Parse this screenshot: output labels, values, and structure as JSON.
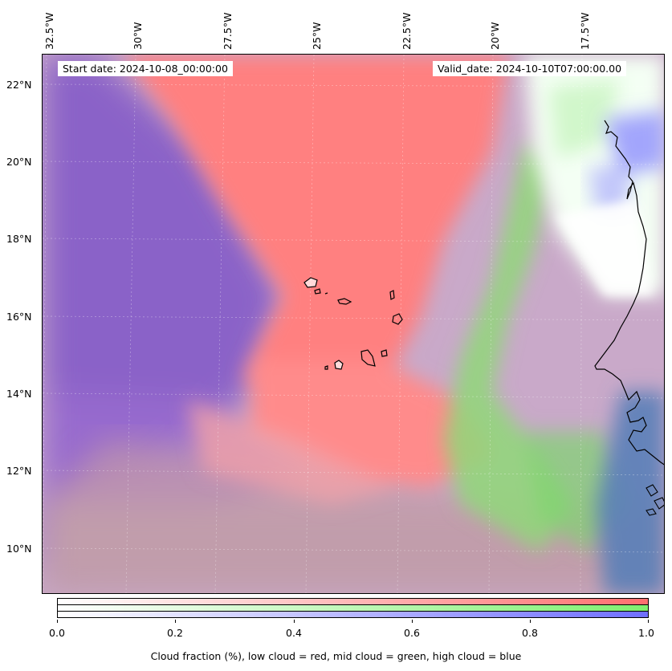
{
  "map": {
    "start_date": "Start date: 2024-10-08_00:00:00",
    "valid_date": "Valid_date: 2024-10-10T07:00:00.00",
    "lon_labels": [
      "32.5°W",
      "30°W",
      "27.5°W",
      "25°W",
      "22.5°W",
      "20°W",
      "17.5°W"
    ],
    "lat_labels": [
      "22°N",
      "20°N",
      "18°N",
      "16°N",
      "14°N",
      "12°N",
      "10°N"
    ],
    "colors": {
      "low_cloud": "#ff7f7f",
      "mid_cloud": "#7fff7f",
      "high_cloud": "#7f7fff",
      "coastline": "#000000"
    }
  },
  "colorbar": {
    "ticks": [
      "0.0",
      "0.2",
      "0.4",
      "0.6",
      "0.8",
      "1.0"
    ],
    "label": "Cloud fraction (%), low cloud = red, mid cloud = green, high cloud = blue"
  }
}
